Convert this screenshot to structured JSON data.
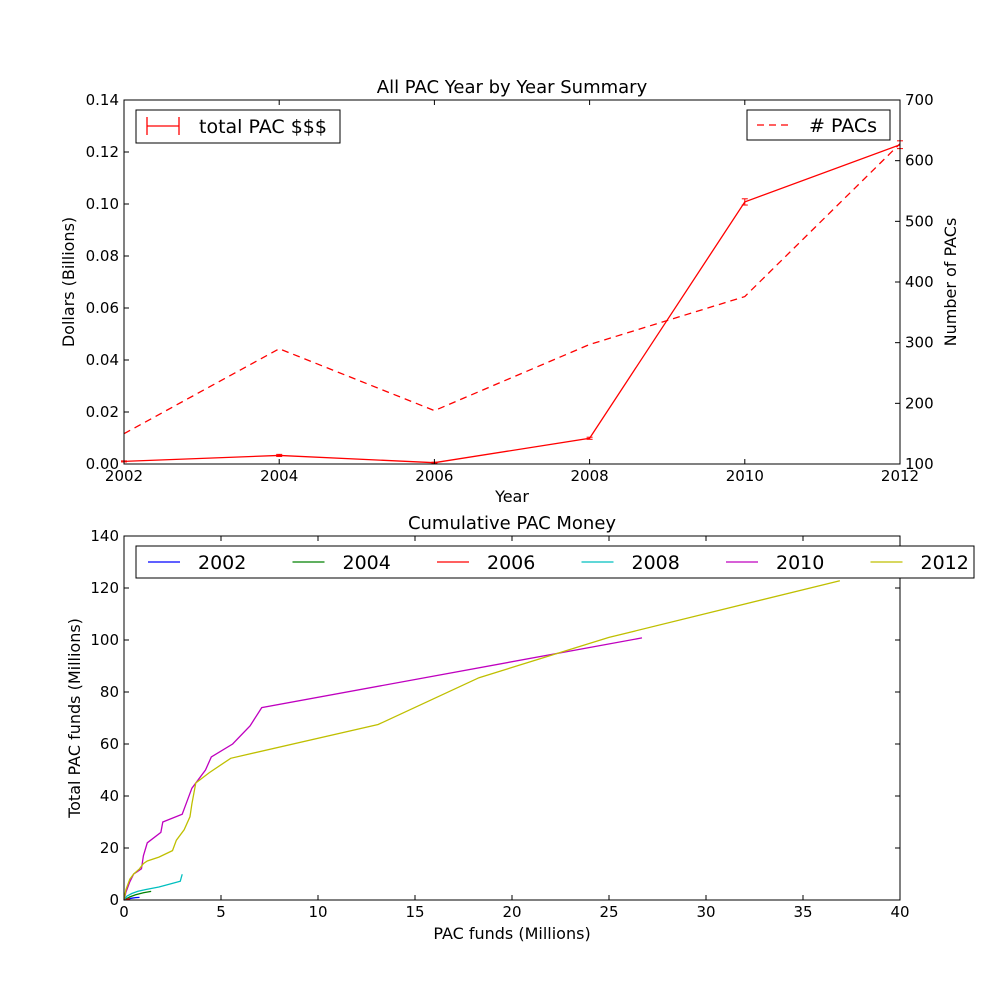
{
  "chart_data": [
    {
      "type": "line",
      "title": "All PAC Year by Year Summary",
      "xlabel": "Year",
      "ylabel": "Dollars (Billions)",
      "y2label": "Number of PACs",
      "xlim": [
        2002,
        2012
      ],
      "ylim": [
        0,
        0.14
      ],
      "y2lim": [
        100,
        700
      ],
      "x_ticks": [
        "2002",
        "2004",
        "2006",
        "2008",
        "2010",
        "2012"
      ],
      "y_ticks": [
        "0.00",
        "0.02",
        "0.04",
        "0.06",
        "0.08",
        "0.10",
        "0.12",
        "0.14"
      ],
      "y2_ticks": [
        "100",
        "200",
        "300",
        "400",
        "500",
        "600",
        "700"
      ],
      "grid": false,
      "legend_left_label": "total PAC $$$",
      "legend_right_label": "# PACs",
      "series": [
        {
          "name": "total PAC $$$",
          "axis": "left",
          "style": "solid-errorbar",
          "color": "#ff0000",
          "x": [
            2002,
            2004,
            2006,
            2008,
            2010,
            2012
          ],
          "y": [
            0.001,
            0.0033,
            0.0005,
            0.0099,
            0.1008,
            0.1228
          ],
          "err": [
            0.0002,
            0.0004,
            0.0002,
            0.0004,
            0.0012,
            0.0015
          ]
        },
        {
          "name": "# PACs",
          "axis": "right",
          "style": "dashed",
          "color": "#ff0000",
          "x": [
            2002,
            2004,
            2006,
            2008,
            2010,
            2012
          ],
          "y": [
            150,
            290,
            188,
            297,
            376,
            628
          ]
        }
      ]
    },
    {
      "type": "line",
      "title": "Cumulative PAC Money",
      "xlabel": "PAC funds (Millions)",
      "ylabel": "Total PAC funds (Millions)",
      "xlim": [
        0,
        40
      ],
      "ylim": [
        0,
        140
      ],
      "x_ticks": [
        "0",
        "5",
        "10",
        "15",
        "20",
        "25",
        "30",
        "35",
        "40"
      ],
      "y_ticks": [
        "0",
        "20",
        "40",
        "60",
        "80",
        "100",
        "120",
        "140"
      ],
      "grid": false,
      "legend_placement": "top",
      "series": [
        {
          "name": "2002",
          "color": "#0000ff",
          "x": [
            0,
            0.2,
            0.4,
            0.6,
            0.8
          ],
          "y": [
            0,
            0.4,
            0.7,
            0.9,
            1.0
          ]
        },
        {
          "name": "2004",
          "color": "#008000",
          "x": [
            0,
            0.3,
            0.6,
            1.0,
            1.4
          ],
          "y": [
            0,
            1.2,
            2.0,
            2.8,
            3.3
          ]
        },
        {
          "name": "2006",
          "color": "#ff0000",
          "x": [
            0,
            0.1,
            0.2,
            0.3
          ],
          "y": [
            0,
            0.2,
            0.35,
            0.5
          ]
        },
        {
          "name": "2008",
          "color": "#00bfbf",
          "x": [
            0,
            0.15,
            0.4,
            0.7,
            1.1,
            1.8,
            2.4,
            2.9,
            3.0
          ],
          "y": [
            0,
            1.5,
            2.5,
            3.3,
            4.0,
            5.0,
            6.2,
            7.2,
            9.9
          ]
        },
        {
          "name": "2010",
          "color": "#bf00bf",
          "x": [
            0,
            0.1,
            0.3,
            0.5,
            0.7,
            0.9,
            1.0,
            1.2,
            1.9,
            2.0,
            3.0,
            3.2,
            3.5,
            4.2,
            4.5,
            5.6,
            6.5,
            7.1,
            26.7
          ],
          "y": [
            0,
            3,
            7,
            10,
            11,
            12,
            17,
            22,
            26,
            30,
            33,
            37,
            43,
            50,
            55,
            60,
            67,
            74,
            100.8
          ]
        },
        {
          "name": "2012",
          "color": "#bfbf00",
          "x": [
            0,
            0.1,
            0.3,
            0.5,
            0.8,
            1.0,
            1.2,
            1.8,
            2.5,
            2.7,
            3.1,
            3.4,
            3.5,
            3.7,
            4.4,
            5.5,
            13.1,
            18.3,
            25,
            36.9
          ],
          "y": [
            0,
            4,
            8,
            10,
            12,
            14,
            15,
            16.5,
            19,
            23,
            27,
            32,
            37,
            45,
            49,
            54.5,
            67.5,
            85.5,
            101,
            122.8
          ]
        }
      ]
    }
  ]
}
